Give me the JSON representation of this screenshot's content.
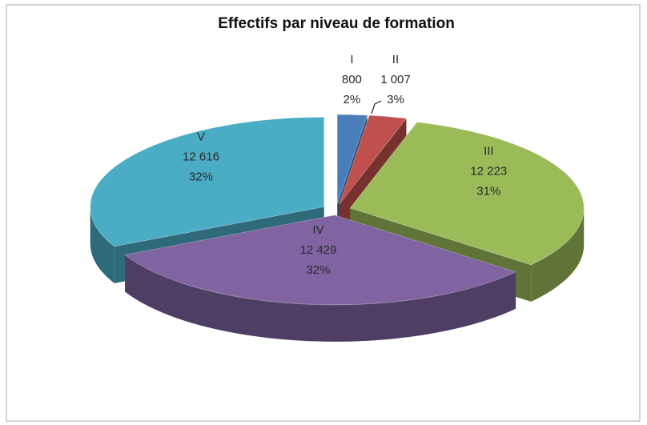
{
  "chart_data": {
    "type": "pie3d",
    "title": "Effectifs par niveau de formation",
    "categories": [
      "I",
      "II",
      "III",
      "IV",
      "V"
    ],
    "values": [
      800,
      1007,
      12223,
      12429,
      12616
    ],
    "value_labels": [
      "800",
      "1 007",
      "12 223",
      "12 429",
      "12 616"
    ],
    "percent_labels": [
      "2%",
      "3%",
      "31%",
      "32%",
      "32%"
    ],
    "colors": [
      "#4a7ebb",
      "#c0504d",
      "#9bbb59",
      "#8064a2",
      "#4bacc6"
    ],
    "exploded": true
  }
}
